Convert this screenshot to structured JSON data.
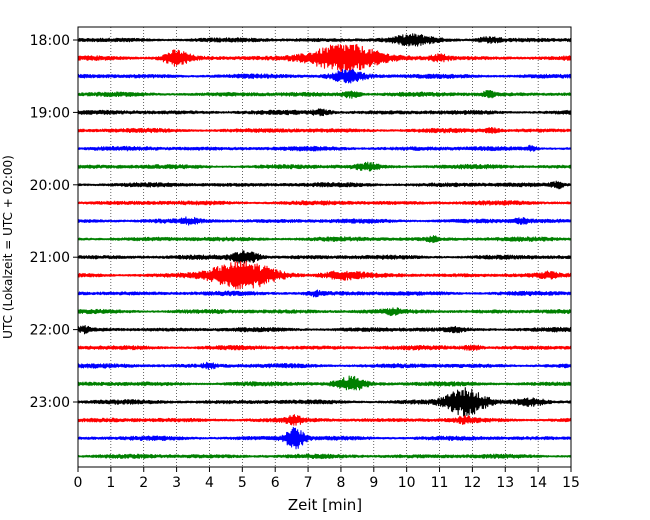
{
  "chart_data": {
    "type": "line",
    "chart_kind": "helicorder (seismogram drum plot)",
    "xlabel": "Zeit  [min]",
    "ylabel": "UTC (Lokalzeit = UTC + 02:00)",
    "xlim": [
      0,
      15
    ],
    "x_ticks": [
      0,
      1,
      2,
      3,
      4,
      5,
      6,
      7,
      8,
      9,
      10,
      11,
      12,
      13,
      14,
      15
    ],
    "x_tick_labels": [
      "0",
      "1",
      "2",
      "3",
      "4",
      "5",
      "6",
      "7",
      "8",
      "9",
      "10",
      "11",
      "12",
      "13",
      "14",
      "15"
    ],
    "y_tick_labels": [
      "18:00",
      "19:00",
      "20:00",
      "21:00",
      "22:00",
      "23:00"
    ],
    "y_tick_trace_index": [
      0,
      4,
      8,
      12,
      16,
      20
    ],
    "grid": "vertical dotted at each minute",
    "trace_minutes": 15,
    "trace_count": 24,
    "trace_colors": [
      "#000000",
      "#ff0000",
      "#0000ff",
      "#008000"
    ],
    "traces": [
      {
        "start": "18:00",
        "color": "#000000",
        "events": [
          {
            "t": 10.2,
            "amp": 2.5,
            "dur": 1.2
          },
          {
            "t": 12.5,
            "amp": 1.6,
            "dur": 0.8
          }
        ]
      },
      {
        "start": "18:15",
        "color": "#ff0000",
        "events": [
          {
            "t": 3.0,
            "amp": 4.5,
            "dur": 0.8
          },
          {
            "t": 8.1,
            "amp": 9.0,
            "dur": 2.0
          },
          {
            "t": 11.0,
            "amp": 2.0,
            "dur": 0.6
          }
        ]
      },
      {
        "start": "18:30",
        "color": "#0000ff",
        "events": [
          {
            "t": 8.2,
            "amp": 3.5,
            "dur": 1.0
          }
        ]
      },
      {
        "start": "18:45",
        "color": "#008000",
        "events": [
          {
            "t": 8.3,
            "amp": 2.0,
            "dur": 0.6
          },
          {
            "t": 12.5,
            "amp": 1.5,
            "dur": 0.5
          }
        ]
      },
      {
        "start": "19:00",
        "color": "#000000",
        "events": [
          {
            "t": 7.4,
            "amp": 1.5,
            "dur": 0.6
          }
        ]
      },
      {
        "start": "19:15",
        "color": "#ff0000",
        "events": [
          {
            "t": 12.6,
            "amp": 1.3,
            "dur": 0.4
          }
        ]
      },
      {
        "start": "19:30",
        "color": "#0000ff",
        "events": [
          {
            "t": 13.8,
            "amp": 1.5,
            "dur": 0.3
          }
        ]
      },
      {
        "start": "19:45",
        "color": "#008000",
        "events": [
          {
            "t": 8.8,
            "amp": 2.0,
            "dur": 0.7
          }
        ]
      },
      {
        "start": "20:00",
        "color": "#000000",
        "events": [
          {
            "t": 14.6,
            "amp": 2.0,
            "dur": 0.4
          }
        ]
      },
      {
        "start": "20:15",
        "color": "#ff0000",
        "events": []
      },
      {
        "start": "20:30",
        "color": "#0000ff",
        "events": [
          {
            "t": 3.4,
            "amp": 1.4,
            "dur": 0.5
          },
          {
            "t": 13.5,
            "amp": 1.3,
            "dur": 0.5
          }
        ]
      },
      {
        "start": "20:45",
        "color": "#008000",
        "events": [
          {
            "t": 10.8,
            "amp": 1.3,
            "dur": 0.4
          }
        ]
      },
      {
        "start": "21:00",
        "color": "#000000",
        "events": [
          {
            "t": 5.1,
            "amp": 4.0,
            "dur": 0.8
          }
        ]
      },
      {
        "start": "21:15",
        "color": "#ff0000",
        "events": [
          {
            "t": 5.0,
            "amp": 8.0,
            "dur": 2.0
          },
          {
            "t": 8.0,
            "amp": 2.0,
            "dur": 1.2
          },
          {
            "t": 14.3,
            "amp": 1.3,
            "dur": 0.5
          }
        ]
      },
      {
        "start": "21:30",
        "color": "#0000ff",
        "events": [
          {
            "t": 7.2,
            "amp": 1.4,
            "dur": 0.5
          }
        ]
      },
      {
        "start": "21:45",
        "color": "#008000",
        "events": [
          {
            "t": 9.6,
            "amp": 1.4,
            "dur": 0.4
          }
        ]
      },
      {
        "start": "22:00",
        "color": "#000000",
        "events": [
          {
            "t": 0.2,
            "amp": 1.5,
            "dur": 0.3
          },
          {
            "t": 11.5,
            "amp": 1.3,
            "dur": 0.5
          }
        ]
      },
      {
        "start": "22:15",
        "color": "#ff0000",
        "events": [
          {
            "t": 12.0,
            "amp": 1.3,
            "dur": 0.6
          }
        ]
      },
      {
        "start": "22:30",
        "color": "#0000ff",
        "events": [
          {
            "t": 4.0,
            "amp": 1.5,
            "dur": 0.4
          }
        ]
      },
      {
        "start": "22:45",
        "color": "#008000",
        "events": [
          {
            "t": 8.3,
            "amp": 4.0,
            "dur": 0.9
          }
        ]
      },
      {
        "start": "23:00",
        "color": "#000000",
        "events": [
          {
            "t": 11.8,
            "amp": 8.0,
            "dur": 1.2
          },
          {
            "t": 13.8,
            "amp": 2.0,
            "dur": 0.9
          }
        ]
      },
      {
        "start": "23:15",
        "color": "#ff0000",
        "events": [
          {
            "t": 6.6,
            "amp": 2.0,
            "dur": 0.5
          },
          {
            "t": 11.8,
            "amp": 1.5,
            "dur": 0.6
          }
        ]
      },
      {
        "start": "23:30",
        "color": "#0000ff",
        "events": [
          {
            "t": 6.6,
            "amp": 6.0,
            "dur": 0.6
          }
        ]
      },
      {
        "start": "23:45",
        "color": "#008000",
        "events": []
      }
    ]
  }
}
